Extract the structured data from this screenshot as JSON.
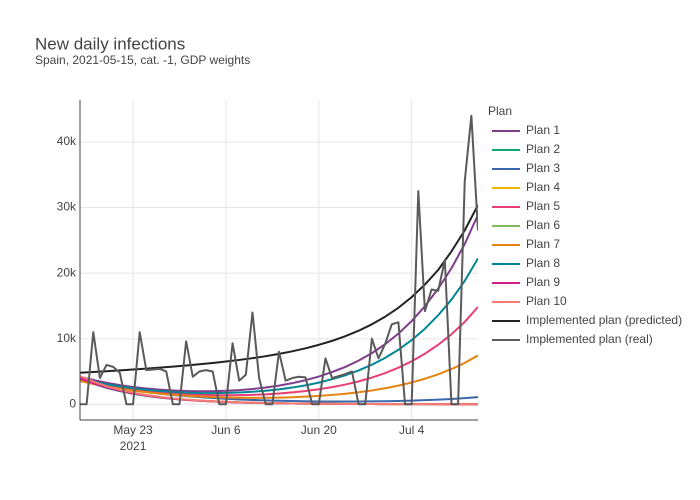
{
  "chart_data": {
    "type": "line",
    "title": "New daily infections",
    "subtitle": "Spain, 2021-05-15, cat. -1, GDP weights",
    "legend_title": "Plan",
    "legend_position": "right",
    "grid": true,
    "x": [
      "2021-05-15",
      "2021-05-17",
      "2021-05-19",
      "2021-05-21",
      "2021-05-23",
      "2021-05-25",
      "2021-05-27",
      "2021-05-29",
      "2021-05-31",
      "2021-06-02",
      "2021-06-04",
      "2021-06-06",
      "2021-06-08",
      "2021-06-10",
      "2021-06-12",
      "2021-06-14",
      "2021-06-16",
      "2021-06-18",
      "2021-06-20",
      "2021-06-22",
      "2021-06-24",
      "2021-06-26",
      "2021-06-28",
      "2021-06-30",
      "2021-07-02",
      "2021-07-04",
      "2021-07-06",
      "2021-07-08",
      "2021-07-10",
      "2021-07-12",
      "2021-07-14"
    ],
    "xlim": [
      "2021-05-15",
      "2021-07-14"
    ],
    "xticks": [
      {
        "value": "2021-05-23",
        "label": "May 23",
        "sublabel": "2021"
      },
      {
        "value": "2021-06-06",
        "label": "Jun 6"
      },
      {
        "value": "2021-06-20",
        "label": "Jun 20"
      },
      {
        "value": "2021-07-04",
        "label": "Jul 4"
      }
    ],
    "ylim": [
      -2400,
      46400
    ],
    "yticks": [
      0,
      {
        "value": 10000,
        "label": "10k"
      },
      {
        "value": 20000,
        "label": "20k"
      },
      {
        "value": 30000,
        "label": "30k"
      },
      {
        "value": 40000,
        "label": "40k"
      }
    ],
    "series": [
      {
        "name": "Plan 1",
        "color": "#7f3c8d",
        "values": [
          4195,
          3698,
          3277,
          2926,
          2640,
          2409,
          2226,
          2098,
          2015,
          1978,
          1992,
          2051,
          2161,
          2326,
          2549,
          2847,
          3216,
          3667,
          4224,
          4905,
          5688,
          6655,
          7797,
          9157,
          10775,
          12690,
          14955,
          17634,
          20742,
          24439,
          28916
        ]
      },
      {
        "name": "Plan 2",
        "color": "#11a579",
        "values": [
          3900,
          3124,
          2500,
          2001,
          1603,
          1283,
          1030,
          823,
          659,
          527,
          421,
          339,
          269,
          218,
          172,
          140,
          109,
          90,
          70,
          59,
          47,
          35,
          31,
          23,
          20,
          16,
          12,
          8,
          8,
          8,
          4
        ]
      },
      {
        "name": "Plan 3",
        "color": "#3969ac",
        "values": [
          3807,
          3303,
          2864,
          2486,
          2161,
          1878,
          1630,
          1420,
          1239,
          1080,
          949,
          834,
          736,
          654,
          585,
          530,
          489,
          453,
          430,
          418,
          413,
          422,
          437,
          464,
          504,
          558,
          624,
          710,
          810,
          936,
          1089
        ]
      },
      {
        "name": "Plan 4",
        "color": "#f2b701",
        "values": [
          4100,
          3284,
          2628,
          2103,
          1685,
          1349,
          1082,
          865,
          693,
          554,
          443,
          357,
          283,
          230,
          180,
          148,
          115,
          94,
          74,
          62,
          49,
          37,
          33,
          25,
          21,
          16,
          12,
          8,
          8,
          8,
          4
        ]
      },
      {
        "name": "Plan 5",
        "color": "#e73f74",
        "values": [
          3700,
          3239,
          2844,
          2509,
          2229,
          1994,
          1798,
          1646,
          1527,
          1442,
          1393,
          1374,
          1387,
          1435,
          1516,
          1641,
          1807,
          2017,
          2284,
          2618,
          3005,
          3490,
          4065,
          4753,
          5575,
          6551,
          7706,
          9076,
          10665,
          12558,
          14850
        ]
      },
      {
        "name": "Plan 6",
        "color": "#80ba5a",
        "values": [
          4200,
          3364,
          2692,
          2155,
          1726,
          1382,
          1109,
          886,
          710,
          567,
          454,
          365,
          290,
          235,
          185,
          151,
          118,
          97,
          76,
          63,
          50,
          38,
          34,
          25,
          21,
          17,
          13,
          8,
          8,
          8,
          4
        ]
      },
      {
        "name": "Plan 7",
        "color": "#e68310",
        "values": [
          3550,
          3094,
          2699,
          2362,
          2076,
          1830,
          1620,
          1449,
          1307,
          1190,
          1105,
          1041,
          1000,
          983,
          988,
          1020,
          1077,
          1158,
          1271,
          1421,
          1600,
          1830,
          2106,
          2440,
          2842,
          3323,
          3894,
          4574,
          5363,
          6306,
          7449
        ]
      },
      {
        "name": "Plan 8",
        "color": "#008695",
        "values": [
          3950,
          3472,
          3064,
          2722,
          2440,
          2207,
          2019,
          1880,
          1781,
          1721,
          1706,
          1728,
          1793,
          1903,
          2058,
          2275,
          2548,
          2884,
          3304,
          3821,
          4417,
          5155,
          6028,
          7071,
          8312,
          9781,
          11521,
          13580,
          15968,
          18811,
          22253
        ]
      },
      {
        "name": "Plan 9",
        "color": "#cf1c90",
        "values": [
          4000,
          3204,
          2564,
          2052,
          1644,
          1316,
          1056,
          844,
          676,
          540,
          432,
          348,
          276,
          224,
          176,
          144,
          112,
          92,
          72,
          60,
          48,
          36,
          32,
          24,
          20,
          16,
          12,
          8,
          8,
          8,
          4
        ]
      },
      {
        "name": "Plan 10",
        "color": "#f97b72",
        "values": [
          4300,
          3444,
          2756,
          2206,
          1767,
          1415,
          1135,
          907,
          727,
          581,
          464,
          374,
          297,
          241,
          189,
          155,
          120,
          99,
          77,
          65,
          52,
          39,
          34,
          26,
          22,
          17,
          13,
          9,
          9,
          9,
          4
        ]
      },
      {
        "name": "Implemented plan (predicted)",
        "color": "#222222",
        "values": [
          4797,
          4916,
          5040,
          5168,
          5301,
          5441,
          5589,
          5746,
          5915,
          6099,
          6298,
          6517,
          6759,
          7028,
          7332,
          7684,
          8075,
          8534,
          9061,
          9665,
          10376,
          11214,
          12196,
          13354,
          14715,
          16337,
          18261,
          20495,
          23311,
          26515,
          30398
        ]
      },
      {
        "name": "Implemented plan (real)",
        "color": "#5a5a5a",
        "x": [
          "2021-05-15",
          "2021-05-16",
          "2021-05-17",
          "2021-05-18",
          "2021-05-19",
          "2021-05-20",
          "2021-05-21",
          "2021-05-22",
          "2021-05-23",
          "2021-05-24",
          "2021-05-25",
          "2021-05-26",
          "2021-05-27",
          "2021-05-28",
          "2021-05-29",
          "2021-05-30",
          "2021-05-31",
          "2021-06-01",
          "2021-06-02",
          "2021-06-03",
          "2021-06-04",
          "2021-06-05",
          "2021-06-06",
          "2021-06-07",
          "2021-06-08",
          "2021-06-09",
          "2021-06-10",
          "2021-06-11",
          "2021-06-12",
          "2021-06-13",
          "2021-06-14",
          "2021-06-15",
          "2021-06-16",
          "2021-06-17",
          "2021-06-18",
          "2021-06-19",
          "2021-06-20",
          "2021-06-21",
          "2021-06-22",
          "2021-06-23",
          "2021-06-24",
          "2021-06-25",
          "2021-06-26",
          "2021-06-27",
          "2021-06-28",
          "2021-06-29",
          "2021-06-30",
          "2021-07-01",
          "2021-07-02",
          "2021-07-03",
          "2021-07-04",
          "2021-07-05",
          "2021-07-06",
          "2021-07-07",
          "2021-07-08",
          "2021-07-09",
          "2021-07-10",
          "2021-07-11",
          "2021-07-12",
          "2021-07-13",
          "2021-07-14"
        ],
        "values": [
          0,
          0,
          11000,
          4000,
          6000,
          5700,
          4800,
          0,
          0,
          11000,
          5200,
          5300,
          5400,
          5000,
          0,
          0,
          9600,
          4200,
          5000,
          5200,
          5000,
          0,
          0,
          9300,
          3600,
          4500,
          14000,
          4000,
          0,
          0,
          8000,
          3600,
          4000,
          4200,
          4100,
          0,
          0,
          7000,
          4000,
          4300,
          4600,
          5000,
          0,
          0,
          10000,
          7000,
          9200,
          12200,
          12500,
          0,
          0,
          32500,
          14200,
          17500,
          17300,
          22000,
          0,
          0,
          34000,
          44000,
          26500
        ]
      }
    ]
  }
}
